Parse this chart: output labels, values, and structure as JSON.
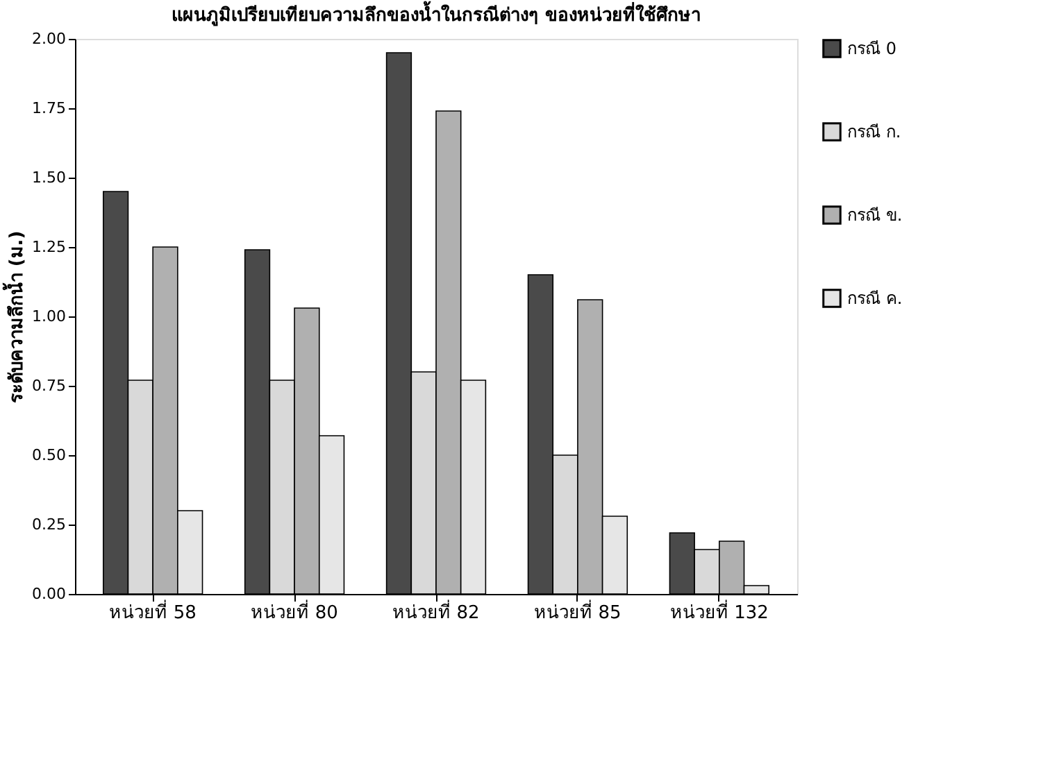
{
  "chart_data": {
    "type": "bar",
    "title": "แผนภูมิเปรียบเทียบความลึกของน้ำในกรณีต่างๆ ของหน่วยที่ใช้ศึกษา",
    "ylabel": "ระดับความลึกน้ำ (ม.)",
    "categories": [
      "หน่วยที่ 58",
      "หน่วยที่ 80",
      "หน่วยที่ 82",
      "หน่วยที่ 85",
      "หน่วยที่ 132"
    ],
    "series": [
      {
        "name": "กรณี 0",
        "color": "#4a4a4a",
        "values": [
          1.45,
          1.24,
          1.95,
          1.15,
          0.22
        ]
      },
      {
        "name": "กรณี ก.",
        "color": "#d9d9d9",
        "values": [
          0.77,
          0.77,
          0.8,
          0.5,
          0.16
        ]
      },
      {
        "name": "กรณี ข.",
        "color": "#b0b0b0",
        "values": [
          1.25,
          1.03,
          1.74,
          1.06,
          0.19
        ]
      },
      {
        "name": "กรณี ค.",
        "color": "#e6e6e6",
        "values": [
          0.3,
          0.57,
          0.77,
          0.28,
          0.03
        ]
      }
    ],
    "ylim": [
      0,
      2
    ],
    "yticks": [
      {
        "value": 0,
        "label": "0.00"
      },
      {
        "value": 0.25,
        "label": "0.25"
      },
      {
        "value": 0.5,
        "label": "0.50"
      },
      {
        "value": 0.75,
        "label": "0.75"
      },
      {
        "value": 1,
        "label": "1.00"
      },
      {
        "value": 1.25,
        "label": "1.25"
      },
      {
        "value": 1.5,
        "label": "1.50"
      },
      {
        "value": 1.75,
        "label": "1.75"
      },
      {
        "value": 2,
        "label": "2.00"
      }
    ],
    "grid": false,
    "legend": "right"
  }
}
